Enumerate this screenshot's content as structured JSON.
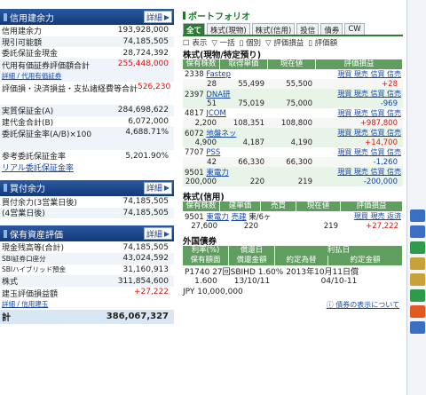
{
  "credit": {
    "title": "信用建余力",
    "more": "詳細",
    "rows": [
      {
        "label": "信用建余力",
        "value": "193,928,000"
      },
      {
        "label": "現引可能額",
        "value": "74,185,505"
      },
      {
        "label": "委託保証金現金",
        "value": "28,724,392"
      },
      {
        "label": "代用有価証券評価額合計",
        "value": "255,448,000",
        "sub": "詳細 / 代用有価証券"
      },
      {
        "label": "評価損・決済損益・支払諸経費等合計",
        "value": "526,230"
      },
      {
        "label": "実質保証金(A)",
        "value": "284,698,622"
      },
      {
        "label": "建代金合計(B)",
        "value": "6,072,000"
      },
      {
        "label": "委託保証金率(A/B)×100",
        "value": "4,688.71%"
      },
      {
        "label": "参考委託保証金率",
        "value": "5,201.90%"
      }
    ],
    "link": "リアル委託保証金率"
  },
  "buying": {
    "title": "買付余力",
    "more": "詳細",
    "rows": [
      {
        "label": "買付余力(3営業日後)",
        "value": "74,185,505"
      },
      {
        "label": "(4営業日後)",
        "value": "74,185,505"
      }
    ]
  },
  "assets": {
    "title": "保有資産評価",
    "more": "詳細",
    "rows": [
      {
        "label": "現金残高等(合計)",
        "value": "74,185,505"
      },
      {
        "label": "SBI証券口座分",
        "value": "43,024,592"
      },
      {
        "label": "SBIハイブリッド預金",
        "value": "31,160,913"
      },
      {
        "label": "株式",
        "value": "311,854,600"
      },
      {
        "label": "建玉評価損益額",
        "value": "+27,222",
        "sub": "詳細 / 信用建玉"
      }
    ],
    "total_label": "計",
    "total_value": "386,067,327"
  },
  "portfolio": {
    "title": "ポートフォリオ",
    "tabs": [
      "全て",
      "株式(現物)",
      "株式(信用)",
      "投信",
      "債券",
      "CW"
    ],
    "tools": [
      "表示",
      "一括",
      "個別",
      "評価損益",
      "評価額"
    ],
    "spot_title": "株式(現物/特定預り)",
    "spot_headers": [
      "保有株数",
      "取得単価",
      "現在値",
      "評価損益"
    ],
    "links": "現買 現売 信買 信売",
    "stocks": [
      {
        "code": "2338",
        "name": "Fastep",
        "qty": "28",
        "cost": "55,499",
        "price": "55,500",
        "pl": "+28"
      },
      {
        "code": "2397",
        "name": "DNA研",
        "qty": "51",
        "cost": "75,019",
        "price": "75,000",
        "pl": "-969"
      },
      {
        "code": "4817",
        "name": "JCOM",
        "qty": "2,200",
        "cost": "108,351",
        "price": "108,800",
        "pl": "+987,800"
      },
      {
        "code": "6072",
        "name": "地盤ネッ",
        "qty": "4,900",
        "cost": "4,187",
        "price": "4,190",
        "pl": "+14,700"
      },
      {
        "code": "7707",
        "name": "PSS",
        "qty": "42",
        "cost": "66,330",
        "price": "66,300",
        "pl": "-1,260"
      },
      {
        "code": "9501",
        "name": "東電力",
        "qty": "200,000",
        "cost": "220",
        "price": "219",
        "pl": "-200,000"
      }
    ],
    "margin_title": "株式(信用)",
    "margin_headers": [
      "保有株数",
      "建単価",
      "売買",
      "現在値",
      "評価損益"
    ],
    "margin_links": "現買 現売 返済",
    "margin_row": {
      "code": "9501",
      "name": "東電力",
      "type": "売建",
      "term": "東/6ヶ",
      "qty": "27,600",
      "cost": "220",
      "price": "219",
      "pl": "+27,222"
    },
    "bond_title": "外国債券",
    "bond_headers_1": [
      "利率(%)",
      "償還日",
      "利払日"
    ],
    "bond_headers_2": [
      "保有額面",
      "償還金額",
      "約定為替",
      "約定金額"
    ],
    "bond_name": "P1740 27回SBIHD 1.60% 2013年10月11日償",
    "bond_row1": [
      "1.600",
      "13/10/11",
      "04/10-11"
    ],
    "bond_row2": [
      "JPY 10,000,000",
      "",
      "",
      ""
    ],
    "note": "債券の表示について"
  },
  "colors": {
    "header": "#13397a",
    "green": "#2e7a34",
    "red": "#e01010",
    "link": "#1546a8"
  }
}
